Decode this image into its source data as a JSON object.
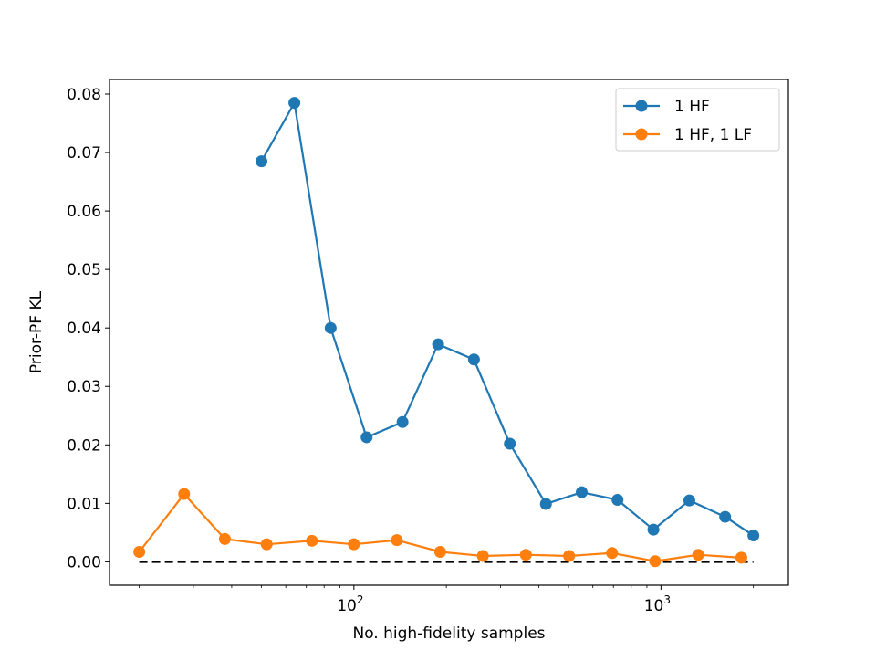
{
  "chart_data": {
    "type": "line",
    "xscale": "log",
    "xlabel": "No. high-fidelity samples",
    "ylabel": "Prior-PF KL",
    "xlim": [
      16,
      2600
    ],
    "ylim": [
      -0.004,
      0.0825
    ],
    "x_ticks": [
      {
        "value": 100,
        "base": "10",
        "exp": "2"
      },
      {
        "value": 1000,
        "base": "10",
        "exp": "3"
      }
    ],
    "y_ticks": [
      {
        "value": 0.0,
        "label": "0.00"
      },
      {
        "value": 0.01,
        "label": "0.01"
      },
      {
        "value": 0.02,
        "label": "0.02"
      },
      {
        "value": 0.03,
        "label": "0.03"
      },
      {
        "value": 0.04,
        "label": "0.04"
      },
      {
        "value": 0.05,
        "label": "0.05"
      },
      {
        "value": 0.06,
        "label": "0.06"
      },
      {
        "value": 0.07,
        "label": "0.07"
      },
      {
        "value": 0.08,
        "label": "0.08"
      }
    ],
    "legend_position": "top-right",
    "series": [
      {
        "name": "1 HF",
        "color": "#1f77b4",
        "x": [
          50,
          64,
          84,
          110,
          144,
          188,
          246,
          322,
          422,
          552,
          722,
          945,
          1237,
          1618,
          2000
        ],
        "y": [
          0.0685,
          0.0785,
          0.04,
          0.0213,
          0.0239,
          0.0372,
          0.0346,
          0.0202,
          0.0099,
          0.0119,
          0.0106,
          0.0055,
          0.0105,
          0.0077,
          0.0045
        ]
      },
      {
        "name": "1 HF, 1 LF",
        "color": "#ff7f0e",
        "x": [
          20,
          28,
          38,
          52,
          73,
          100,
          138,
          191,
          263,
          363,
          502,
          693,
          957,
          1322,
          1827
        ],
        "y": [
          0.0017,
          0.0116,
          0.0039,
          0.003,
          0.0036,
          0.003,
          0.0037,
          0.0017,
          0.001,
          0.0012,
          0.001,
          0.0015,
          0.0001,
          0.0012,
          0.0007
        ]
      }
    ],
    "reference_line": {
      "color": "#000000",
      "style": "dashed",
      "x": [
        20,
        2000
      ],
      "y": [
        0.0,
        0.0
      ]
    }
  }
}
